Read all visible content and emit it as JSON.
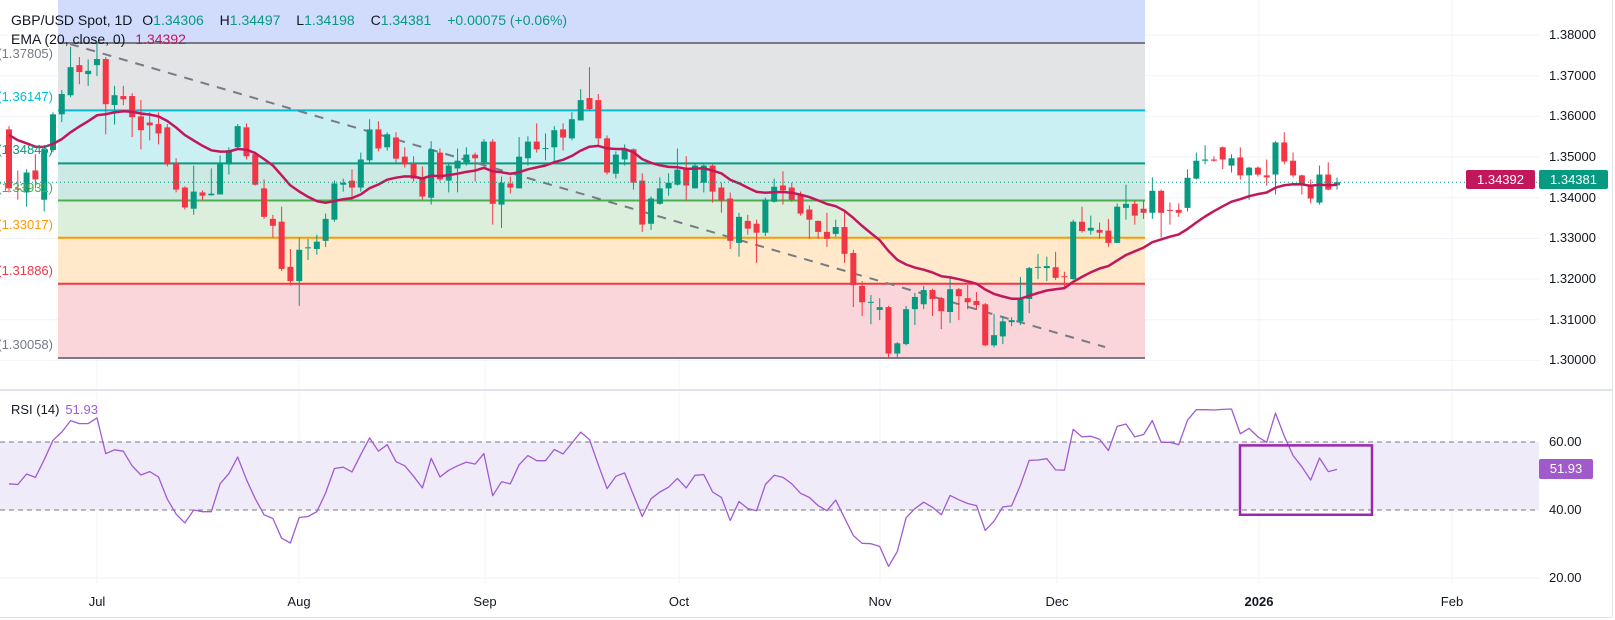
{
  "header": {
    "symbol": "GBP/USD Spot, 1D",
    "o_label": "O",
    "o": "1.34306",
    "h_label": "H",
    "h": "1.34497",
    "l_label": "L",
    "l": "1.34198",
    "c_label": "C",
    "c": "1.34381",
    "change": "+0.00075 (+0.06%)",
    "ema_label": "EMA (20, close, 0)",
    "ema_value": "1.34392"
  },
  "price_axis": {
    "labels": [
      "1.38000",
      "1.37000",
      "1.36000",
      "1.35000",
      "1.34000",
      "1.33000",
      "1.32000",
      "1.31000",
      "1.30000"
    ],
    "ema_tag": "1.34392",
    "close_tag": "1.34381"
  },
  "rsi_panel": {
    "title": "RSI (14)",
    "value": "51.93",
    "axis_labels": [
      "60.00",
      "40.00",
      "20.00"
    ],
    "upper_band": 60,
    "lower_band": 40
  },
  "time_axis": {
    "labels": [
      "Jul",
      "Aug",
      "Sep",
      "Oct",
      "Nov",
      "Dec",
      "2026",
      "Feb"
    ]
  },
  "colors": {
    "up": "#089981",
    "down": "#f23645",
    "ema": "#c2185b",
    "rsi": "#a15bd3",
    "rsi_tag": "#a05ac9",
    "rsi_band": "#f0ebf8",
    "highlight_box": "#9c27b0",
    "trendline": "#787b86",
    "fib_top_fill": "#d1dcfd"
  },
  "fib": {
    "levels": [
      {
        "label": "(1.37805)",
        "value": 1.37805,
        "color": "#787b86",
        "fill_below": "#e3e4e6"
      },
      {
        "label": "(1.36147)",
        "value": 1.36147,
        "color": "#00bcd4",
        "fill_below": "#caf0f4"
      },
      {
        "label": "(1.34846)",
        "value": 1.34846,
        "color": "#089981",
        "fill_below": "#cde9e3"
      },
      {
        "label": "(1.33931)",
        "value": 1.33931,
        "color": "#4caf50",
        "fill_below": "#dcefdc"
      },
      {
        "label": "(1.33017)",
        "value": 1.33017,
        "color": "#ff9800",
        "fill_below": "#ffe9ca"
      },
      {
        "label": "(1.31886)",
        "value": 1.31886,
        "color": "#f23645",
        "fill_below": "#fad5d9"
      },
      {
        "label": "(1.30058)",
        "value": 1.30058,
        "color": "#787b86",
        "fill_below": null
      }
    ]
  },
  "chart_data": {
    "type": "candlestick",
    "title": "GBP/USD Spot, 1D",
    "ylim": [
      1.295,
      1.385
    ],
    "grid": true,
    "x_ticks": [
      "Jul",
      "Aug",
      "Sep",
      "Oct",
      "Nov",
      "Dec",
      "2026",
      "Feb"
    ],
    "y_ticks": [
      "1.30000",
      "1.31000",
      "1.32000",
      "1.33000",
      "1.34000",
      "1.35000",
      "1.36000",
      "1.37000",
      "1.38000"
    ],
    "candle_fields": [
      "open",
      "high",
      "low",
      "close"
    ],
    "candles": [
      [
        1.3568,
        1.3576,
        1.3413,
        1.3423
      ],
      [
        1.3423,
        1.3467,
        1.3395,
        1.342
      ],
      [
        1.3413,
        1.347,
        1.3378,
        1.3462
      ],
      [
        1.3467,
        1.3507,
        1.3423,
        1.3445
      ],
      [
        1.3395,
        1.3519,
        1.3366,
        1.3519
      ],
      [
        1.3517,
        1.361,
        1.3512,
        1.3605
      ],
      [
        1.3605,
        1.3665,
        1.3586,
        1.3655
      ],
      [
        1.3652,
        1.3771,
        1.3647,
        1.3721
      ],
      [
        1.3726,
        1.3746,
        1.3679,
        1.3709
      ],
      [
        1.3704,
        1.374,
        1.3675,
        1.3712
      ],
      [
        1.3726,
        1.3783,
        1.3699,
        1.3741
      ],
      [
        1.3741,
        1.3746,
        1.3556,
        1.363
      ],
      [
        1.3628,
        1.3675,
        1.358,
        1.3652
      ],
      [
        1.365,
        1.3675,
        1.3628,
        1.3642
      ],
      [
        1.365,
        1.3657,
        1.3549,
        1.3598
      ],
      [
        1.36,
        1.364,
        1.3519,
        1.3566
      ],
      [
        1.3585,
        1.361,
        1.3541,
        1.3578
      ],
      [
        1.3581,
        1.361,
        1.3531,
        1.3558
      ],
      [
        1.3573,
        1.3581,
        1.3477,
        1.3482
      ],
      [
        1.3484,
        1.3497,
        1.3413,
        1.342
      ],
      [
        1.3425,
        1.3428,
        1.3371,
        1.3376
      ],
      [
        1.3373,
        1.3479,
        1.3358,
        1.3415
      ],
      [
        1.3413,
        1.3418,
        1.3393,
        1.3405
      ],
      [
        1.3406,
        1.3472,
        1.3405,
        1.341
      ],
      [
        1.3408,
        1.3504,
        1.3408,
        1.3484
      ],
      [
        1.3482,
        1.3524,
        1.3457,
        1.3517
      ],
      [
        1.3524,
        1.3581,
        1.3519,
        1.3576
      ],
      [
        1.3573,
        1.3583,
        1.3494,
        1.3502
      ],
      [
        1.3507,
        1.3511,
        1.343,
        1.3432
      ],
      [
        1.3423,
        1.3445,
        1.3348,
        1.3353
      ],
      [
        1.3348,
        1.3358,
        1.3302,
        1.3331
      ],
      [
        1.3341,
        1.3378,
        1.322,
        1.3225
      ],
      [
        1.323,
        1.3274,
        1.3185,
        1.3195
      ],
      [
        1.3195,
        1.3302,
        1.3134,
        1.3272
      ],
      [
        1.3276,
        1.3299,
        1.3247,
        1.3278
      ],
      [
        1.3274,
        1.3309,
        1.326,
        1.3292
      ],
      [
        1.3294,
        1.3361,
        1.3279,
        1.3348
      ],
      [
        1.3346,
        1.3442,
        1.3341,
        1.3435
      ],
      [
        1.3432,
        1.3447,
        1.3415,
        1.3437
      ],
      [
        1.3442,
        1.347,
        1.3395,
        1.3425
      ],
      [
        1.3425,
        1.3511,
        1.3415,
        1.3494
      ],
      [
        1.3492,
        1.3593,
        1.3487,
        1.3568
      ],
      [
        1.3568,
        1.3588,
        1.3514,
        1.3521
      ],
      [
        1.3524,
        1.3561,
        1.3516,
        1.3556
      ],
      [
        1.3548,
        1.3561,
        1.3487,
        1.3496
      ],
      [
        1.3501,
        1.3524,
        1.3474,
        1.3482
      ],
      [
        1.3484,
        1.3502,
        1.344,
        1.3447
      ],
      [
        1.345,
        1.3477,
        1.3395,
        1.3403
      ],
      [
        1.34,
        1.3539,
        1.3383,
        1.3519
      ],
      [
        1.3511,
        1.3521,
        1.344,
        1.3445
      ],
      [
        1.3442,
        1.3487,
        1.3413,
        1.3479
      ],
      [
        1.3472,
        1.3521,
        1.3413,
        1.3491
      ],
      [
        1.3487,
        1.3524,
        1.3479,
        1.3506
      ],
      [
        1.3506,
        1.3511,
        1.344,
        1.3497
      ],
      [
        1.3487,
        1.3544,
        1.3487,
        1.3538
      ],
      [
        1.3538,
        1.3544,
        1.3334,
        1.3385
      ],
      [
        1.3383,
        1.3452,
        1.3326,
        1.3437
      ],
      [
        1.3435,
        1.3452,
        1.341,
        1.3425
      ],
      [
        1.3423,
        1.3549,
        1.3423,
        1.3501
      ],
      [
        1.3497,
        1.3551,
        1.3479,
        1.3538
      ],
      [
        1.3538,
        1.3583,
        1.3511,
        1.3519
      ],
      [
        1.352,
        1.3558,
        1.3492,
        1.3522
      ],
      [
        1.3524,
        1.3576,
        1.3487,
        1.3566
      ],
      [
        1.3568,
        1.3583,
        1.3516,
        1.3548
      ],
      [
        1.3546,
        1.361,
        1.3541,
        1.3593
      ],
      [
        1.359,
        1.3667,
        1.359,
        1.364
      ],
      [
        1.3645,
        1.3721,
        1.3613,
        1.3618
      ],
      [
        1.364,
        1.3655,
        1.3529,
        1.3546
      ],
      [
        1.3546,
        1.3553,
        1.3457,
        1.3462
      ],
      [
        1.3459,
        1.3514,
        1.3447,
        1.3506
      ],
      [
        1.3494,
        1.3531,
        1.3479,
        1.3521
      ],
      [
        1.3519,
        1.3521,
        1.342,
        1.3437
      ],
      [
        1.3442,
        1.346,
        1.3316,
        1.3334
      ],
      [
        1.3336,
        1.3403,
        1.3321,
        1.3398
      ],
      [
        1.3385,
        1.345,
        1.3383,
        1.3423
      ],
      [
        1.3423,
        1.346,
        1.3405,
        1.3437
      ],
      [
        1.3432,
        1.3521,
        1.343,
        1.3469
      ],
      [
        1.3469,
        1.3502,
        1.3393,
        1.343
      ],
      [
        1.3423,
        1.3484,
        1.3423,
        1.3479
      ],
      [
        1.3437,
        1.3484,
        1.3413,
        1.3479
      ],
      [
        1.3479,
        1.3482,
        1.3388,
        1.3415
      ],
      [
        1.3425,
        1.3437,
        1.3363,
        1.3393
      ],
      [
        1.3398,
        1.3413,
        1.3274,
        1.3294
      ],
      [
        1.3289,
        1.3363,
        1.3255,
        1.3353
      ],
      [
        1.3343,
        1.3358,
        1.3309,
        1.3324
      ],
      [
        1.3336,
        1.3346,
        1.324,
        1.3314
      ],
      [
        1.3314,
        1.34,
        1.3306,
        1.3395
      ],
      [
        1.339,
        1.3447,
        1.3388,
        1.3427
      ],
      [
        1.343,
        1.3465,
        1.3383,
        1.3418
      ],
      [
        1.3425,
        1.3437,
        1.339,
        1.3395
      ],
      [
        1.3408,
        1.3415,
        1.3356,
        1.3361
      ],
      [
        1.3371,
        1.3381,
        1.3299,
        1.3346
      ],
      [
        1.3343,
        1.3344,
        1.3299,
        1.3316
      ],
      [
        1.3316,
        1.3363,
        1.3279,
        1.3299
      ],
      [
        1.3311,
        1.3346,
        1.3304,
        1.3328
      ],
      [
        1.3328,
        1.3366,
        1.324,
        1.3262
      ],
      [
        1.3264,
        1.3272,
        1.3131,
        1.3185
      ],
      [
        1.3183,
        1.3195,
        1.3109,
        1.3143
      ],
      [
        1.3142,
        1.3161,
        1.3089,
        1.3144
      ],
      [
        1.3124,
        1.3153,
        1.3099,
        1.3131
      ],
      [
        1.3131,
        1.3134,
        1.3005,
        1.3017
      ],
      [
        1.3017,
        1.3045,
        1.3005,
        1.3042
      ],
      [
        1.304,
        1.3134,
        1.3037,
        1.3126
      ],
      [
        1.3126,
        1.3166,
        1.3087,
        1.3156
      ],
      [
        1.3138,
        1.3183,
        1.3126,
        1.3173
      ],
      [
        1.3173,
        1.3176,
        1.3109,
        1.3151
      ],
      [
        1.3153,
        1.3156,
        1.3077,
        1.3121
      ],
      [
        1.3119,
        1.3205,
        1.3092,
        1.3175
      ],
      [
        1.3175,
        1.3178,
        1.3099,
        1.3158
      ],
      [
        1.3153,
        1.3185,
        1.3126,
        1.3143
      ],
      [
        1.3146,
        1.3168,
        1.3124,
        1.3136
      ],
      [
        1.3138,
        1.3141,
        1.3035,
        1.3037
      ],
      [
        1.3037,
        1.3114,
        1.3032,
        1.3062
      ],
      [
        1.3059,
        1.3109,
        1.304,
        1.3096
      ],
      [
        1.3094,
        1.3106,
        1.3084,
        1.3099
      ],
      [
        1.3096,
        1.3205,
        1.3087,
        1.3153
      ],
      [
        1.3151,
        1.323,
        1.3116,
        1.3227
      ],
      [
        1.3228,
        1.3262,
        1.32,
        1.323
      ],
      [
        1.3227,
        1.3255,
        1.3195,
        1.3232
      ],
      [
        1.3229,
        1.3267,
        1.3198,
        1.3203
      ],
      [
        1.3207,
        1.3218,
        1.3178,
        1.3205
      ],
      [
        1.32,
        1.3346,
        1.3198,
        1.3341
      ],
      [
        1.3341,
        1.3378,
        1.3314,
        1.3318
      ],
      [
        1.3319,
        1.3356,
        1.3309,
        1.3326
      ],
      [
        1.3321,
        1.3339,
        1.3299,
        1.3314
      ],
      [
        1.3319,
        1.3348,
        1.3279,
        1.3289
      ],
      [
        1.3289,
        1.3386,
        1.3289,
        1.3378
      ],
      [
        1.3375,
        1.3432,
        1.3346,
        1.3385
      ],
      [
        1.3385,
        1.3393,
        1.3334,
        1.3356
      ],
      [
        1.3373,
        1.3393,
        1.3348,
        1.3363
      ],
      [
        1.3363,
        1.345,
        1.3348,
        1.3417
      ],
      [
        1.3417,
        1.342,
        1.3302,
        1.3363
      ],
      [
        1.337,
        1.3388,
        1.3334,
        1.3368
      ],
      [
        1.337,
        1.3386,
        1.3353,
        1.3363
      ],
      [
        1.3375,
        1.347,
        1.3366,
        1.3449
      ],
      [
        1.3447,
        1.3511,
        1.3445,
        1.3491
      ],
      [
        1.3491,
        1.3529,
        1.3482,
        1.3494
      ],
      [
        1.3494,
        1.3502,
        1.3489,
        1.3491
      ],
      [
        1.3524,
        1.3526,
        1.347,
        1.3494
      ],
      [
        1.3479,
        1.3507,
        1.3462,
        1.3497
      ],
      [
        1.3499,
        1.3524,
        1.3445,
        1.3455
      ],
      [
        1.3455,
        1.3476,
        1.3395,
        1.3474
      ],
      [
        1.3474,
        1.3477,
        1.3452,
        1.3457
      ],
      [
        1.3455,
        1.3494,
        1.343,
        1.345
      ],
      [
        1.3457,
        1.3539,
        1.3408,
        1.3536
      ],
      [
        1.3536,
        1.3561,
        1.3482,
        1.3489
      ],
      [
        1.3491,
        1.3511,
        1.345,
        1.3455
      ],
      [
        1.3455,
        1.3457,
        1.3408,
        1.343
      ],
      [
        1.343,
        1.3445,
        1.3386,
        1.3398
      ],
      [
        1.3388,
        1.3479,
        1.3383,
        1.3457
      ],
      [
        1.3457,
        1.3487,
        1.3418,
        1.342
      ],
      [
        1.34306,
        1.34497,
        1.34198,
        1.34381
      ]
    ],
    "ema_period": 20,
    "rsi": {
      "period": 14,
      "ylim": [
        15,
        80
      ],
      "values": [
        47.7,
        47.5,
        50.6,
        49.6,
        54.8,
        60.5,
        62.9,
        66.3,
        65.4,
        65.4,
        67.1,
        56.6,
        57.7,
        57.3,
        53.0,
        50.3,
        51.3,
        49.7,
        43.2,
        38.8,
        36.2,
        40.0,
        39.5,
        39.5,
        47.7,
        50.7,
        55.6,
        48.9,
        43.3,
        38.6,
        37.5,
        31.7,
        30.3,
        37.8,
        38.1,
        39.5,
        45.0,
        52.2,
        52.6,
        51.2,
        56.3,
        61.2,
        57.3,
        59.2,
        54.2,
        53.0,
        49.9,
        46.5,
        55.2,
        49.7,
        51.7,
        53.0,
        54.1,
        53.5,
        56.6,
        44.2,
        48.3,
        47.7,
        53.3,
        56.0,
        54.5,
        54.5,
        57.8,
        56.5,
        59.7,
        62.9,
        60.7,
        53.3,
        46.3,
        49.9,
        50.9,
        44.5,
        38.1,
        43.3,
        45.3,
        46.7,
        49.3,
        46.5,
        50.2,
        50.4,
        45.3,
        43.7,
        36.9,
        42.5,
        40.4,
        39.8,
        47.5,
        50.2,
        49.6,
        47.7,
        44.9,
        43.7,
        41.3,
        39.8,
        42.9,
        37.7,
        32.5,
        30.2,
        30.1,
        29.3,
        23.4,
        27.8,
        37.7,
        40.4,
        42.3,
        40.8,
        38.6,
        44.3,
        43.0,
        41.9,
        41.3,
        34.0,
        36.7,
        40.9,
        41.2,
        47.3,
        54.6,
        54.7,
        55.1,
        51.8,
        51.7,
        63.7,
        61.5,
        61.7,
        60.8,
        57.5,
        64.6,
        65.3,
        61.5,
        62.2,
        66.3,
        59.9,
        59.9,
        59.2,
        66.4,
        69.5,
        69.5,
        69.4,
        69.6,
        69.7,
        62.4,
        64.0,
        61.5,
        59.9,
        68.5,
        61.7,
        56.0,
        52.7,
        48.8,
        55.3,
        51.3,
        51.93
      ]
    }
  }
}
